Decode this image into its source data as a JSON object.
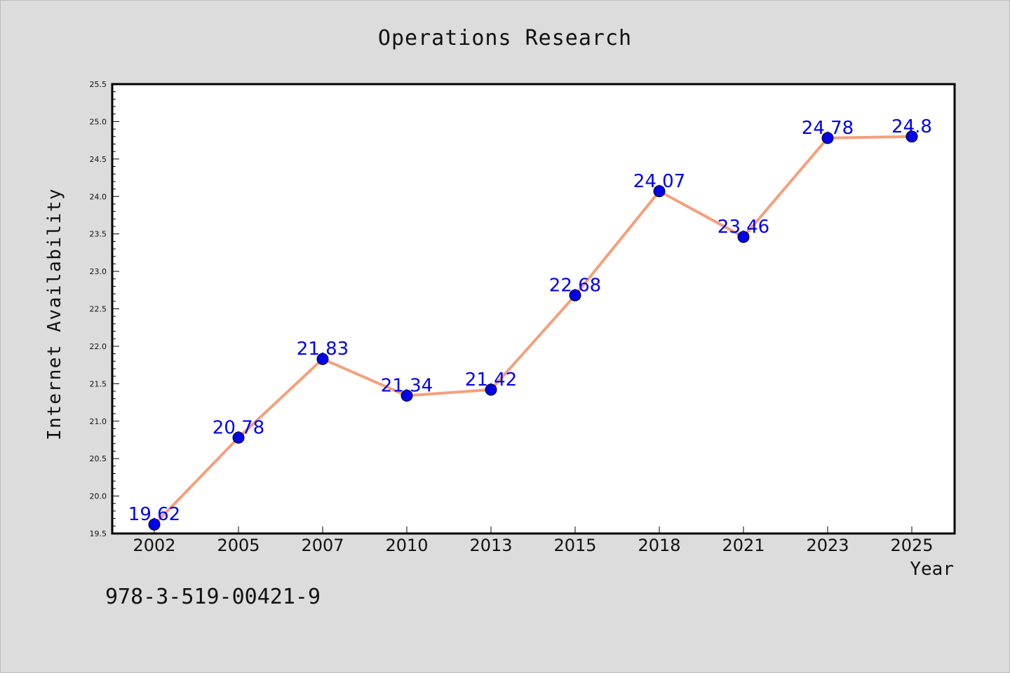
{
  "footer_code": "978-3-519-00421-9",
  "colors": {
    "background": "#dcdcdc",
    "plot_background": "#ffffff",
    "line": "#f4a07c",
    "marker": "#0000ee",
    "label": "#0000ee",
    "text": "#111111"
  },
  "chart_data": {
    "type": "line",
    "title": "Operations Research",
    "xlabel": "Year",
    "ylabel": "Internet Availability",
    "ylim": [
      19.5,
      25.5
    ],
    "yticks": [
      "19.5",
      "20.0",
      "20.5",
      "21.0",
      "21.5",
      "22.0",
      "22.5",
      "23.0",
      "23.5",
      "24.0",
      "24.5",
      "25.0",
      "25.5"
    ],
    "grid": false,
    "categories": [
      "2002",
      "2005",
      "2007",
      "2010",
      "2013",
      "2015",
      "2018",
      "2021",
      "2023",
      "2025"
    ],
    "values": [
      19.62,
      20.78,
      21.83,
      21.34,
      21.42,
      22.68,
      24.07,
      23.46,
      24.78,
      24.8
    ],
    "data_labels": [
      "19.62",
      "20.78",
      "21.83",
      "21.34",
      "21.42",
      "22.68",
      "24.07",
      "23.46",
      "24.78",
      "24.8"
    ]
  }
}
